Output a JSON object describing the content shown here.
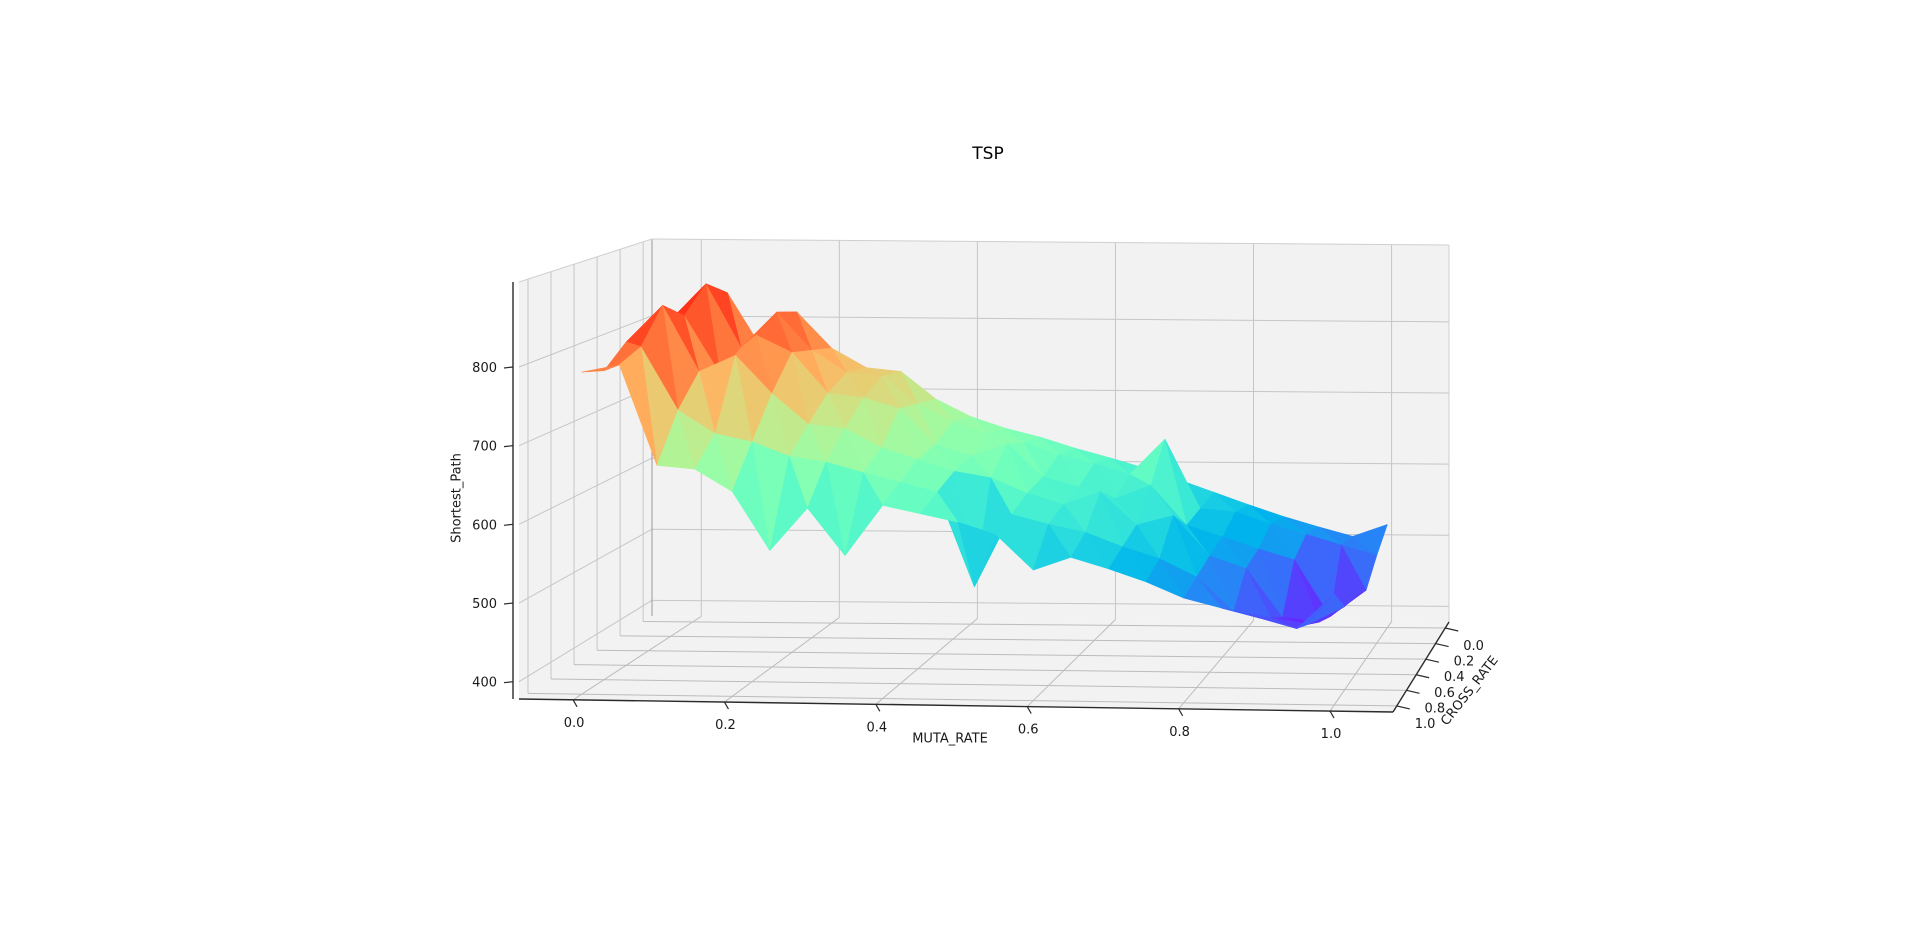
{
  "chart_data": {
    "type": "surface3d",
    "title": "TSP",
    "xlabel": "MUTA_RATE",
    "ylabel": "CROSS_RATE",
    "zlabel": "Shortest_Path",
    "colormap": "rainbow",
    "x_ticks": [
      "0.0",
      "0.2",
      "0.4",
      "0.6",
      "0.8",
      "1.0"
    ],
    "x_tick_values": [
      0.0,
      0.2,
      0.4,
      0.6,
      0.8,
      1.0
    ],
    "y_ticks": [
      "0.0",
      "0.2",
      "0.4",
      "0.6",
      "0.8",
      "1.0"
    ],
    "y_tick_values": [
      0.0,
      0.2,
      0.4,
      0.6,
      0.8,
      1.0
    ],
    "z_ticks": [
      "400",
      "500",
      "600",
      "700",
      "800"
    ],
    "z_tick_values": [
      400,
      500,
      600,
      700,
      800
    ],
    "xlim": [
      -0.0714,
      1.0832
    ],
    "ylim": [
      -0.077,
      1.078
    ],
    "zlim": [
      378,
      908
    ],
    "x": [
      0.0,
      0.05,
      0.1,
      0.15,
      0.2,
      0.25,
      0.3,
      0.35,
      0.4,
      0.45,
      0.5,
      0.55,
      0.6,
      0.65,
      0.7,
      0.75,
      0.8,
      0.85,
      0.9,
      0.95,
      1.0
    ],
    "y_rows": [
      0.0,
      0.2,
      0.4,
      0.6,
      0.8,
      1.0
    ],
    "z": [
      [
        800,
        838,
        760,
        812,
        762,
        735,
        730,
        692,
        668,
        652,
        640,
        625,
        612,
        598,
        582,
        565,
        548,
        532,
        518,
        505,
        522
      ],
      [
        812,
        862,
        775,
        824,
        772,
        742,
        738,
        700,
        676,
        660,
        648,
        632,
        620,
        606,
        655,
        560,
        556,
        540,
        526,
        512,
        498
      ],
      [
        795,
        830,
        752,
        805,
        782,
        728,
        722,
        708,
        660,
        645,
        662,
        618,
        605,
        590,
        608,
        555,
        540,
        524,
        510,
        434,
        470
      ],
      [
        806,
        855,
        768,
        790,
        740,
        700,
        695,
        670,
        655,
        640,
        632,
        612,
        598,
        615,
        572,
        585,
        532,
        516,
        452,
        446,
        480
      ],
      [
        780,
        812,
        730,
        700,
        690,
        672,
        665,
        652,
        640,
        628,
        505,
        600,
        588,
        578,
        560,
        545,
        522,
        478,
        470,
        462,
        486
      ],
      [
        790,
        800,
        672,
        668,
        640,
        565,
        620,
        560,
        625,
        615,
        605,
        590,
        545,
        562,
        548,
        532,
        512,
        500,
        488,
        475,
        520
      ]
    ],
    "grid": true,
    "legend": "none",
    "colors": {
      "pane": "#f2f2f2",
      "wall_grid": "#c6c6c6",
      "floor_grid": "#bcbcbc",
      "pane_edge": "#cfcfcf",
      "spine": "#2b2b2b",
      "background": "#ffffff"
    }
  }
}
